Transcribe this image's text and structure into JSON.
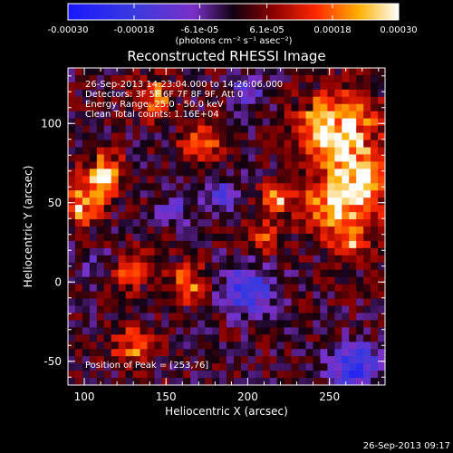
{
  "chart_data": {
    "type": "heatmap",
    "title": "Reconstructed RHESSI Image",
    "xlabel": "Heliocentric X (arcsec)",
    "ylabel": "Heliocentric Y (arcsec)",
    "xlim": [
      90,
      284
    ],
    "ylim": [
      -65,
      135
    ],
    "x_ticks": [
      100,
      150,
      200,
      250
    ],
    "y_ticks": [
      -50,
      0,
      50,
      100
    ],
    "colorbar": {
      "range": [
        -0.0003,
        0.0003
      ],
      "tick_labels": [
        "-0.00030",
        "-0.00018",
        "-6.1e-05",
        "6.1e-05",
        "0.00018",
        "0.00030"
      ],
      "tick_values": [
        -0.0003,
        -0.00018,
        -6.1e-05,
        6.1e-05,
        0.00018,
        0.0003
      ],
      "units": "(photons cm⁻² s⁻¹ asec⁻²)"
    },
    "info_lines": [
      "26-Sep-2013 14:23:04.000 to 14:26:06.000",
      "Detectors: 3F 5F 6F 7F 8F 9F, Att 0",
      "Energy Range: 25.0 - 50.0 keV",
      "Clean     Total counts: 1.16E+04"
    ],
    "peak_label": "Position of Peak = [253,76]",
    "peak_position": [
      253,
      76
    ],
    "hot_regions": [
      {
        "x": 255,
        "y": 95,
        "strength": 1.0,
        "radius": 22
      },
      {
        "x": 268,
        "y": 60,
        "strength": 0.9,
        "radius": 18
      },
      {
        "x": 248,
        "y": 45,
        "strength": 0.7,
        "radius": 14
      },
      {
        "x": 263,
        "y": 25,
        "strength": 0.55,
        "radius": 12
      },
      {
        "x": 112,
        "y": 67,
        "strength": 0.85,
        "radius": 12
      },
      {
        "x": 100,
        "y": 48,
        "strength": 0.75,
        "radius": 10
      },
      {
        "x": 142,
        "y": 116,
        "strength": 0.55,
        "radius": 12
      },
      {
        "x": 173,
        "y": 88,
        "strength": 0.5,
        "radius": 12
      },
      {
        "x": 217,
        "y": 52,
        "strength": 0.6,
        "radius": 10
      },
      {
        "x": 210,
        "y": 28,
        "strength": 0.45,
        "radius": 10
      },
      {
        "x": 126,
        "y": 8,
        "strength": 0.45,
        "radius": 12
      },
      {
        "x": 164,
        "y": -1,
        "strength": 0.45,
        "radius": 12
      },
      {
        "x": 130,
        "y": -40,
        "strength": 0.5,
        "radius": 12
      }
    ],
    "cold_regions": [
      {
        "x": 200,
        "y": -5,
        "strength": 0.8,
        "radius": 15
      },
      {
        "x": 265,
        "y": -53,
        "strength": 0.85,
        "radius": 15
      },
      {
        "x": 182,
        "y": 55,
        "strength": 0.5,
        "radius": 12
      },
      {
        "x": 155,
        "y": 45,
        "strength": 0.5,
        "radius": 9
      },
      {
        "x": 200,
        "y": 120,
        "strength": 0.4,
        "radius": 12
      },
      {
        "x": 110,
        "y": 10,
        "strength": 0.35,
        "radius": 9
      }
    ]
  },
  "footer_timestamp": "26-Sep-2013 09:17"
}
